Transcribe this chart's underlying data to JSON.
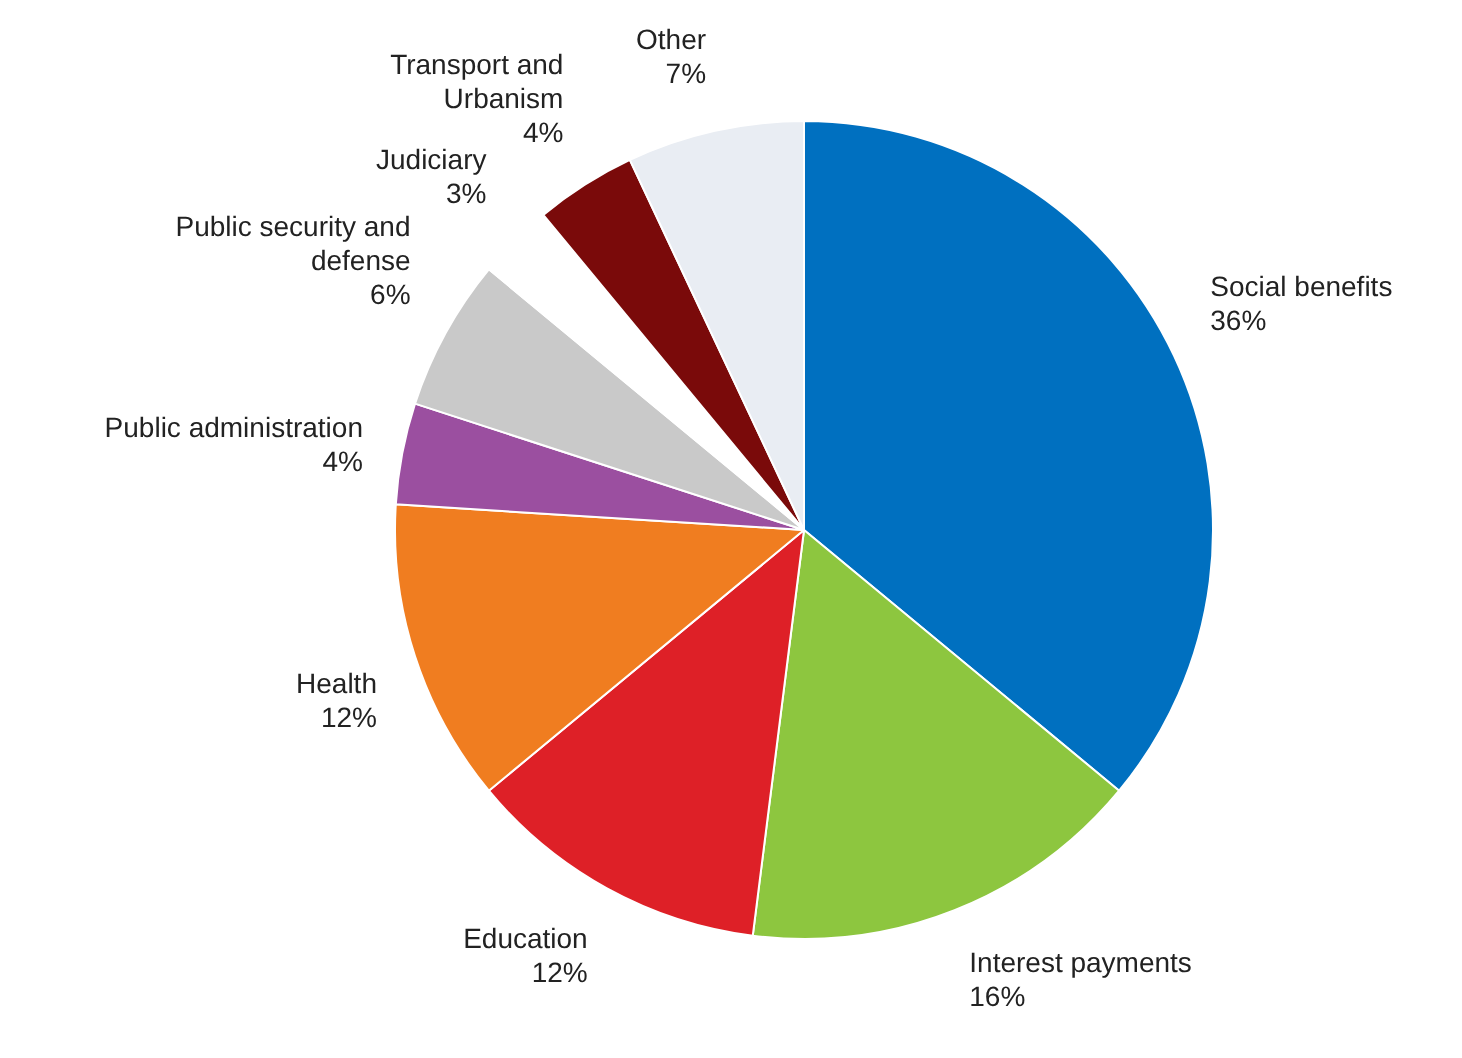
{
  "chart_data": {
    "type": "pie",
    "categories": [
      "Social benefits",
      "Interest payments",
      "Education",
      "Health",
      "Public administration",
      "Public security and defense",
      "Judiciary",
      "Transport and Urbanism",
      "Other"
    ],
    "values": [
      36,
      16,
      12,
      12,
      4,
      6,
      3,
      4,
      7
    ],
    "value_labels": [
      "36%",
      "16%",
      "12%",
      "12%",
      "4%",
      "6%",
      "3%",
      "4%",
      "7%"
    ],
    "colors": [
      "#0070c0",
      "#8dc63f",
      "#de2027",
      "#f07d20",
      "#9b4fa0",
      "#c9c9c9",
      "#ffffff",
      "#7a0a0a",
      "#e9edf3"
    ],
    "legend": false
  }
}
